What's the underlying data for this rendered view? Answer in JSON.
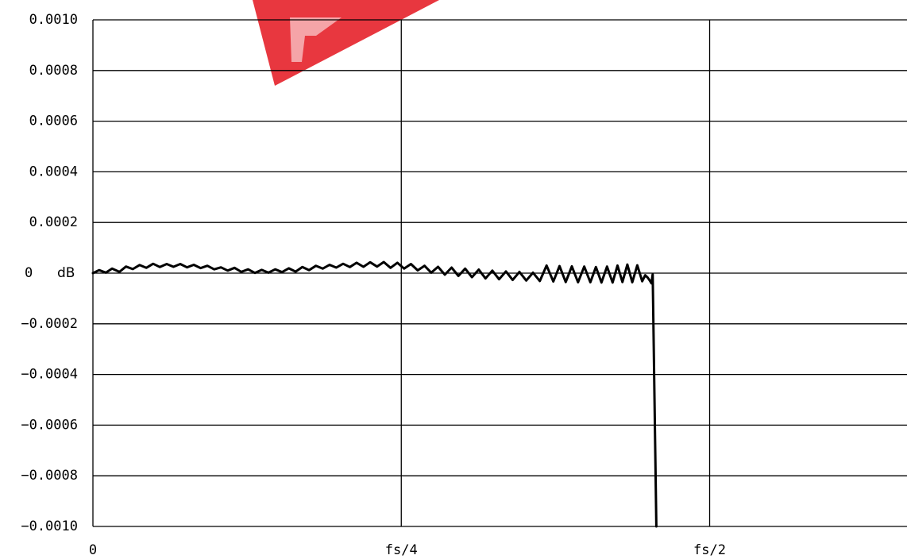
{
  "watermark": {
    "kind": "logo fragment",
    "color": "#e8373f"
  },
  "chart_data": {
    "type": "line",
    "title": "",
    "xlabel": "",
    "ylabel": "",
    "unit_label": "dB",
    "x_tick_labels": [
      "0",
      "fs/4",
      "fs/2"
    ],
    "x_ticks": [
      0,
      0.25,
      0.5
    ],
    "xlim": [
      0,
      0.66
    ],
    "y_tick_labels": [
      "0.0010",
      "0.0008",
      "0.0006",
      "0.0004",
      "0.0002",
      "0",
      "−0.0002",
      "−0.0004",
      "−0.0006",
      "−0.0008",
      "−0.0010"
    ],
    "y_ticks": [
      0.001,
      0.0008,
      0.0006,
      0.0004,
      0.0002,
      0,
      -0.0002,
      -0.0004,
      -0.0006,
      -0.0008,
      -0.001
    ],
    "ylim": [
      -0.001,
      0.001
    ],
    "grid": true,
    "legend": "none",
    "line_color": "#000000",
    "series": [
      {
        "x": [
          0,
          0.005,
          0.0105,
          0.0155,
          0.0215,
          0.0268,
          0.0323,
          0.0378,
          0.0433,
          0.0488,
          0.0543,
          0.0598,
          0.0653,
          0.0708,
          0.0763,
          0.0818,
          0.0873,
          0.0928,
          0.0983,
          0.1038,
          0.1093,
          0.1148,
          0.1203,
          0.1258,
          0.1313,
          0.1368,
          0.1423,
          0.1478,
          0.1533,
          0.1588,
          0.1643,
          0.1698,
          0.1753,
          0.1808,
          0.1863,
          0.1918,
          0.1973,
          0.2028,
          0.2083,
          0.2138,
          0.2193,
          0.2248,
          0.2303,
          0.2358,
          0.2413,
          0.2468,
          0.2523,
          0.2578,
          0.2633,
          0.2688,
          0.2743,
          0.2798,
          0.2853,
          0.2908,
          0.2963,
          0.3018,
          0.3073,
          0.3128,
          0.3183,
          0.3238,
          0.3293,
          0.3348,
          0.3403,
          0.3458,
          0.3513,
          0.3568,
          0.3623,
          0.3678,
          0.3733,
          0.3783,
          0.3833,
          0.3883,
          0.3933,
          0.3983,
          0.4033,
          0.4078,
          0.4123,
          0.4168,
          0.4213,
          0.4253,
          0.4293,
          0.4333,
          0.4373,
          0.4413,
          0.4453,
          0.4478,
          0.4498,
          0.4518,
          0.4528,
          0.4538,
          0.4568
        ],
        "y": [
          0,
          1.2e-05,
          2e-06,
          1.8e-05,
          5e-06,
          2.6e-05,
          1.6e-05,
          3.2e-05,
          2.1e-05,
          3.7e-05,
          2.4e-05,
          3.6e-05,
          2.5e-05,
          3.6e-05,
          2.3e-05,
          3.3e-05,
          2e-05,
          2.9e-05,
          1.5e-05,
          2.3e-05,
          1e-05,
          2.1e-05,
          5e-06,
          1.5e-05,
          1e-06,
          1.3e-05,
          2e-06,
          1.5e-05,
          4e-06,
          1.9e-05,
          6e-06,
          2.4e-05,
          1.2e-05,
          2.9e-05,
          1.8e-05,
          3.3e-05,
          2.2e-05,
          3.7e-05,
          2.4e-05,
          4.1e-05,
          2.5e-05,
          4.3e-05,
          2.6e-05,
          4.4e-05,
          2.1e-05,
          4.1e-05,
          1.8e-05,
          3.6e-05,
          1.1e-05,
          2.9e-05,
          2e-06,
          2.5e-05,
          -6e-06,
          2.2e-05,
          -1.1e-05,
          1.8e-05,
          -1.6e-05,
          1.4e-05,
          -2.1e-05,
          1e-05,
          -2.4e-05,
          7e-06,
          -2.7e-05,
          5e-06,
          -2.9e-05,
          2e-06,
          -3.1e-05,
          3e-05,
          -3.3e-05,
          2.8e-05,
          -3.5e-05,
          2.7e-05,
          -3.6e-05,
          2.6e-05,
          -3.6e-05,
          2.4e-05,
          -3.7e-05,
          2.6e-05,
          -3.7e-05,
          3e-05,
          -3.5e-05,
          3.4e-05,
          -3.6e-05,
          3.1e-05,
          -3.2e-05,
          -8e-06,
          -1.8e-05,
          -3.2e-05,
          -4e-05,
          -4e-06,
          -0.001
        ]
      }
    ]
  }
}
